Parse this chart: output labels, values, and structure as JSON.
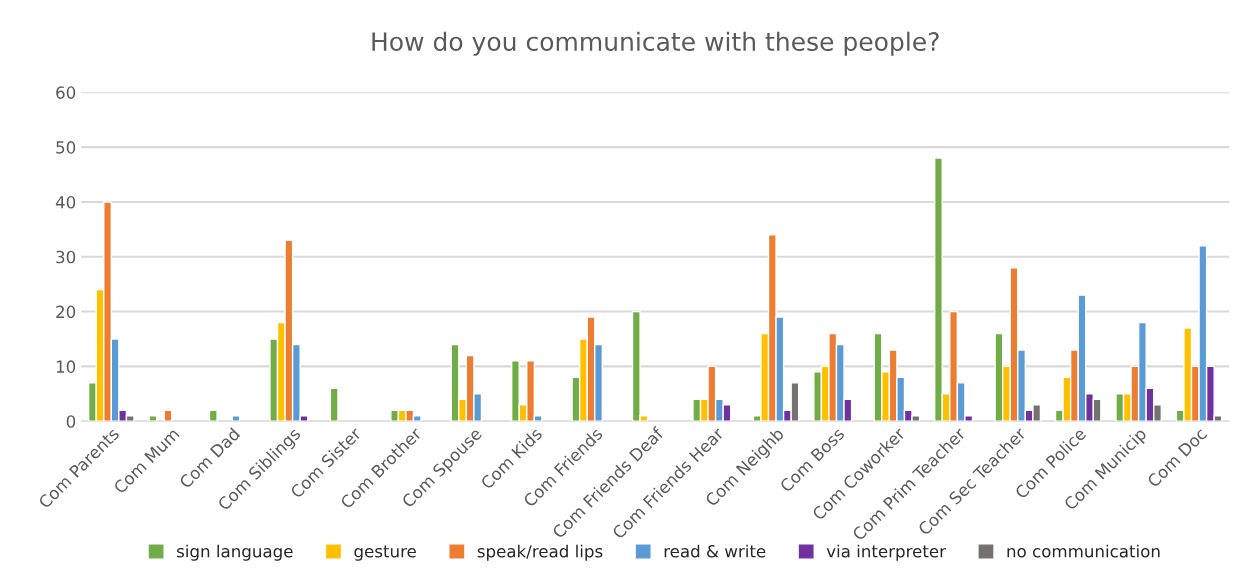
{
  "chart_data": {
    "type": "bar",
    "title": "How do you communicate with these people?",
    "categories": [
      "Com Parents",
      "Com Mum",
      "Com Dad",
      "Com Siblings",
      "Com Sister",
      "Com Brother",
      "Com Spouse",
      "Com Kids",
      "Com Friends",
      "Com Friends Deaf",
      "Com Friends Hear",
      "Com Neighb",
      "Com Boss",
      "Com Coworker",
      "Com Prim Teacher",
      "Com Sec Teacher",
      "Com Police",
      "Com Municip",
      "Com Doc"
    ],
    "series": [
      {
        "name": "sign language",
        "color": "#70ad47",
        "values": [
          7,
          1,
          2,
          15,
          6,
          2,
          14,
          11,
          8,
          20,
          4,
          1,
          9,
          16,
          48,
          16,
          2,
          5,
          2
        ]
      },
      {
        "name": "gesture",
        "color": "#ffc000",
        "values": [
          24,
          null,
          null,
          18,
          null,
          2,
          4,
          3,
          15,
          1,
          4,
          16,
          10,
          9,
          5,
          10,
          8,
          5,
          17
        ]
      },
      {
        "name": "speak/read lips",
        "color": "#ed7d31",
        "values": [
          40,
          2,
          null,
          33,
          null,
          2,
          12,
          11,
          19,
          null,
          10,
          34,
          16,
          13,
          20,
          28,
          13,
          10,
          10
        ]
      },
      {
        "name": "read & write",
        "color": "#5b9bd5",
        "values": [
          15,
          null,
          1,
          14,
          null,
          1,
          5,
          1,
          14,
          null,
          4,
          19,
          14,
          8,
          7,
          13,
          23,
          18,
          32
        ]
      },
      {
        "name": "via interpreter",
        "color": "#7030a0",
        "values": [
          2,
          null,
          null,
          1,
          null,
          null,
          null,
          null,
          null,
          null,
          3,
          2,
          4,
          2,
          1,
          2,
          5,
          6,
          10
        ]
      },
      {
        "name": "no communication",
        "color": "#767171",
        "values": [
          1,
          null,
          null,
          null,
          null,
          null,
          null,
          null,
          null,
          null,
          null,
          7,
          null,
          1,
          null,
          3,
          4,
          3,
          1
        ]
      }
    ],
    "ylim": [
      0,
      60
    ],
    "yticks": [
      0,
      10,
      20,
      30,
      40,
      50,
      60
    ],
    "grid": "y",
    "legend": "bottom"
  }
}
